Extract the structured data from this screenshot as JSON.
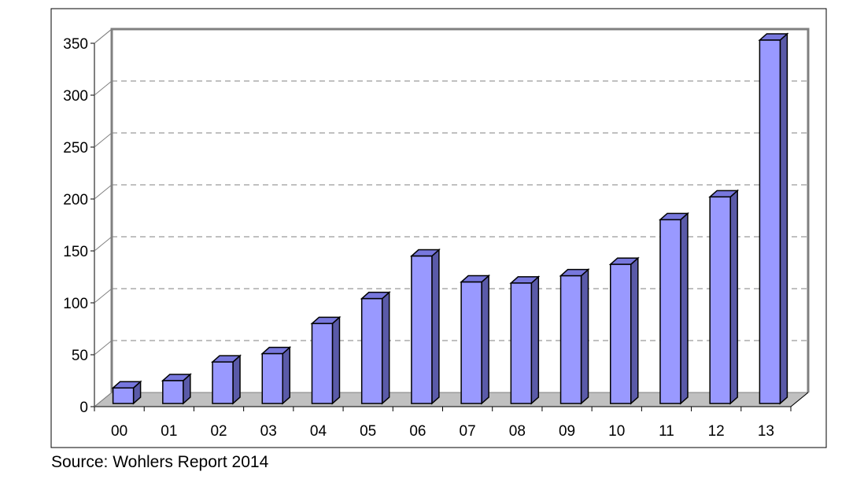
{
  "chart_data": {
    "type": "bar",
    "style": "3d-columns",
    "categories": [
      "00",
      "01",
      "02",
      "03",
      "04",
      "05",
      "06",
      "07",
      "08",
      "09",
      "10",
      "11",
      "12",
      "13"
    ],
    "values": [
      15,
      22,
      40,
      48,
      77,
      101,
      142,
      117,
      116,
      123,
      134,
      177,
      199,
      350
    ],
    "ylim": [
      0,
      350
    ],
    "yticks": [
      "0",
      "50",
      "100",
      "150",
      "200",
      "250",
      "300",
      "350"
    ],
    "ytick_values": [
      0,
      50,
      100,
      150,
      200,
      250,
      300,
      350
    ],
    "grid": "horizontal dashed",
    "legend": "none",
    "title": "",
    "xlabel": "",
    "ylabel": "",
    "colors": {
      "bar_front": "#9999ff",
      "bar_top": "#7777dd",
      "bar_side": "#5a5aa8",
      "floor": "#c0c0c0",
      "wall": "#ffffff",
      "axis": "#808080",
      "grid": "#808080"
    }
  },
  "source_note": "Source: Wohlers Report 2014"
}
